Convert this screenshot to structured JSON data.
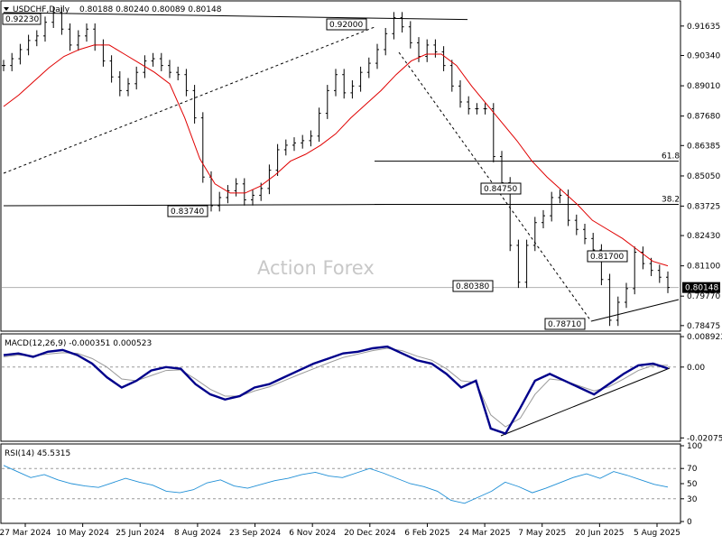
{
  "header": {
    "symbol": "USDCHF,Daily",
    "ohlc": "0.80188 0.80240 0.80089 0.80148"
  },
  "watermark": "Action Forex",
  "colors": {
    "price": "#000000",
    "ma": "#e00000",
    "macd": "#00008b",
    "signal": "#9a9a9a",
    "rsi": "#1f8fd6",
    "trend": "#000000",
    "fib": "#000000"
  },
  "chart_data": [
    {
      "type": "candlestick",
      "title": "USDCHF,Daily",
      "ylim": [
        0.78475,
        0.9223
      ],
      "y_ticks": [
        "0.91635",
        "0.90340",
        "0.89010",
        "0.87680",
        "0.86385",
        "0.85050",
        "0.83725",
        "0.82430",
        "0.81100",
        "0.79770",
        "0.78475"
      ],
      "x_ticks": [
        "27 Mar 2024",
        "10 May 2024",
        "25 Jun 2024",
        "8 Aug 2024",
        "23 Sep 2024",
        "6 Nov 2024",
        "20 Dec 2024",
        "6 Feb 2025",
        "24 Mar 2025",
        "7 May 2025",
        "20 Jun 2025",
        "5 Aug 2025"
      ],
      "last_price": "0.80148",
      "price_labels": [
        "0.92230",
        "0.92000",
        "0.83740",
        "0.84750",
        "0.80380",
        "0.81700",
        "0.78710"
      ],
      "fib_levels": [
        {
          "label": "61.8",
          "value": 0.857
        },
        {
          "label": "38.2",
          "value": 0.838
        }
      ],
      "series": [
        {
          "name": "price",
          "values": [
            0.899,
            0.902,
            0.906,
            0.91,
            0.912,
            0.918,
            0.9223,
            0.915,
            0.908,
            0.912,
            0.915,
            0.908,
            0.901,
            0.894,
            0.888,
            0.891,
            0.896,
            0.901,
            0.902,
            0.899,
            0.896,
            0.895,
            0.888,
            0.876,
            0.85,
            0.8374,
            0.841,
            0.844,
            0.847,
            0.84,
            0.842,
            0.845,
            0.853,
            0.862,
            0.864,
            0.865,
            0.866,
            0.868,
            0.878,
            0.888,
            0.895,
            0.887,
            0.89,
            0.896,
            0.9,
            0.906,
            0.913,
            0.92,
            0.916,
            0.909,
            0.903,
            0.908,
            0.905,
            0.899,
            0.89,
            0.883,
            0.88,
            0.88,
            0.88,
            0.859,
            0.8475,
            0.82,
            0.8038,
            0.82,
            0.83,
            0.833,
            0.841,
            0.842,
            0.831,
            0.827,
            0.823,
            0.818,
            0.805,
            0.7871,
            0.795,
            0.801,
            0.817,
            0.812,
            0.809,
            0.806,
            0.8015
          ]
        },
        {
          "name": "ma",
          "values": [
            0.881,
            0.886,
            0.892,
            0.898,
            0.903,
            0.906,
            0.908,
            0.908,
            0.904,
            0.9,
            0.896,
            0.891,
            0.876,
            0.858,
            0.847,
            0.843,
            0.843,
            0.846,
            0.851,
            0.857,
            0.86,
            0.864,
            0.869,
            0.876,
            0.882,
            0.888,
            0.895,
            0.901,
            0.904,
            0.904,
            0.899,
            0.89,
            0.882,
            0.874,
            0.866,
            0.857,
            0.85,
            0.844,
            0.838,
            0.831,
            0.827,
            0.823,
            0.818,
            0.813,
            0.811
          ]
        }
      ]
    },
    {
      "type": "line",
      "title": "MACD(12,26,9) -0.000351 0.000523",
      "ylim": [
        -0.020759,
        0.008923
      ],
      "y_ticks": [
        "0.008923",
        "0.00",
        "-0.020759"
      ],
      "series": [
        {
          "name": "MACD",
          "values": [
            0.0035,
            0.004,
            0.003,
            0.0045,
            0.005,
            0.0035,
            0.001,
            -0.003,
            -0.006,
            -0.004,
            -0.001,
            0.0,
            -0.0005,
            -0.005,
            -0.008,
            -0.0095,
            -0.0085,
            -0.006,
            -0.005,
            -0.003,
            -0.001,
            0.001,
            0.0025,
            0.004,
            0.0045,
            0.0055,
            0.006,
            0.004,
            0.002,
            0.001,
            -0.002,
            -0.006,
            -0.004,
            -0.018,
            -0.0195,
            -0.012,
            -0.004,
            -0.002,
            -0.004,
            -0.006,
            -0.008,
            -0.005,
            -0.002,
            0.0005,
            0.001,
            -0.0004
          ]
        },
        {
          "name": "Signal",
          "values": [
            0.003,
            0.0035,
            0.0033,
            0.0038,
            0.0042,
            0.004,
            0.0025,
            0.0,
            -0.0035,
            -0.004,
            -0.0025,
            -0.001,
            -0.0008,
            -0.0035,
            -0.0065,
            -0.0085,
            -0.0085,
            -0.007,
            -0.0058,
            -0.004,
            -0.0022,
            -0.0005,
            0.0012,
            0.0028,
            0.0038,
            0.0048,
            0.0055,
            0.0048,
            0.0032,
            0.002,
            -0.0005,
            -0.004,
            -0.0045,
            -0.014,
            -0.0175,
            -0.015,
            -0.008,
            -0.0035,
            -0.004,
            -0.0055,
            -0.007,
            -0.0058,
            -0.0035,
            -0.001,
            0.0005,
            0.0005
          ]
        }
      ]
    },
    {
      "type": "line",
      "title": "RSI(14) 45.5315",
      "ylim": [
        0,
        100
      ],
      "y_ticks": [
        "100",
        "70",
        "50",
        "30",
        "0"
      ],
      "series": [
        {
          "name": "RSI",
          "values": [
            74,
            66,
            58,
            62,
            55,
            50,
            47,
            45,
            51,
            57,
            52,
            48,
            40,
            38,
            42,
            51,
            55,
            47,
            44,
            49,
            54,
            57,
            62,
            65,
            60,
            58,
            64,
            70,
            64,
            57,
            50,
            46,
            40,
            28,
            24,
            32,
            40,
            52,
            46,
            38,
            44,
            51,
            58,
            63,
            57,
            66,
            61,
            55,
            49,
            45.53
          ]
        }
      ]
    }
  ]
}
